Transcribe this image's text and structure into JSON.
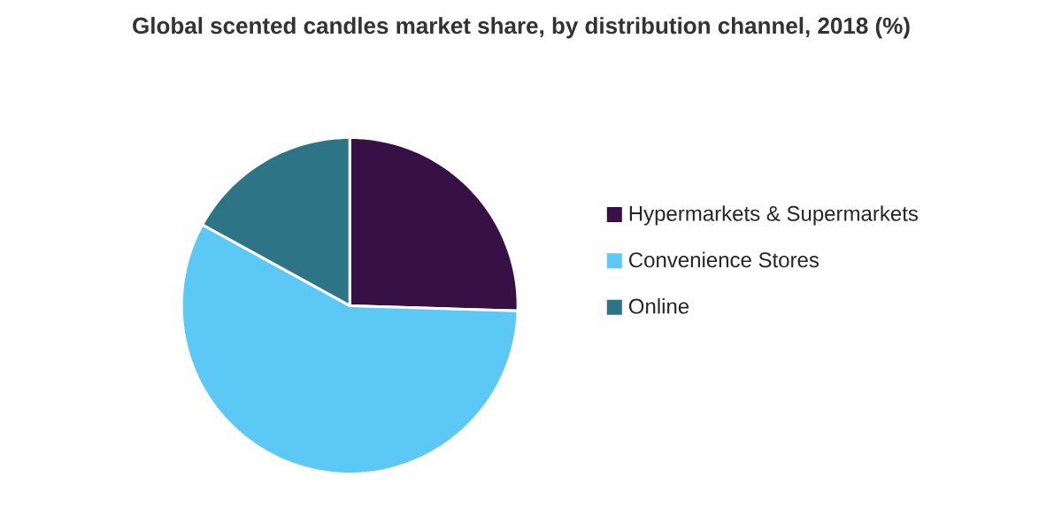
{
  "chart_data": {
    "type": "pie",
    "title": "Global scented candles market share, by distribution channel, 2018 (%)",
    "categories": [
      "Hypermarkets & Supermarkets",
      "Convenience Stores",
      "Online"
    ],
    "values": [
      25.5,
      57.5,
      17
    ],
    "colors": [
      "#371146",
      "#5bc8f5",
      "#2e7487"
    ],
    "legend": "right"
  }
}
